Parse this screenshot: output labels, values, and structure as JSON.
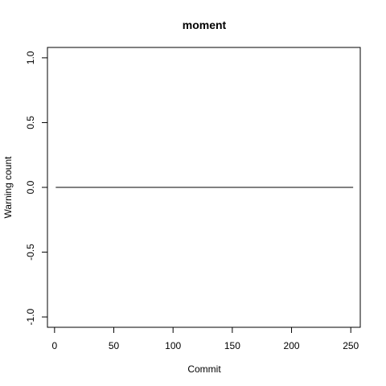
{
  "chart_data": {
    "type": "line",
    "title": "moment",
    "xlabel": "Commit",
    "ylabel": "Warning count",
    "xlim": [
      -6,
      258
    ],
    "ylim": [
      -1.08,
      1.08
    ],
    "x_ticks": [
      0,
      50,
      100,
      150,
      200,
      250
    ],
    "x_tick_labels": [
      "0",
      "50",
      "100",
      "150",
      "200",
      "250"
    ],
    "y_ticks": [
      -1.0,
      -0.5,
      0.0,
      0.5,
      1.0
    ],
    "y_tick_labels": [
      "-1.0",
      "-0.5",
      "0.0",
      "0.5",
      "1.0"
    ],
    "grid": false,
    "series": [
      {
        "x": [
          1,
          252
        ],
        "y": [
          0,
          0
        ]
      }
    ]
  }
}
